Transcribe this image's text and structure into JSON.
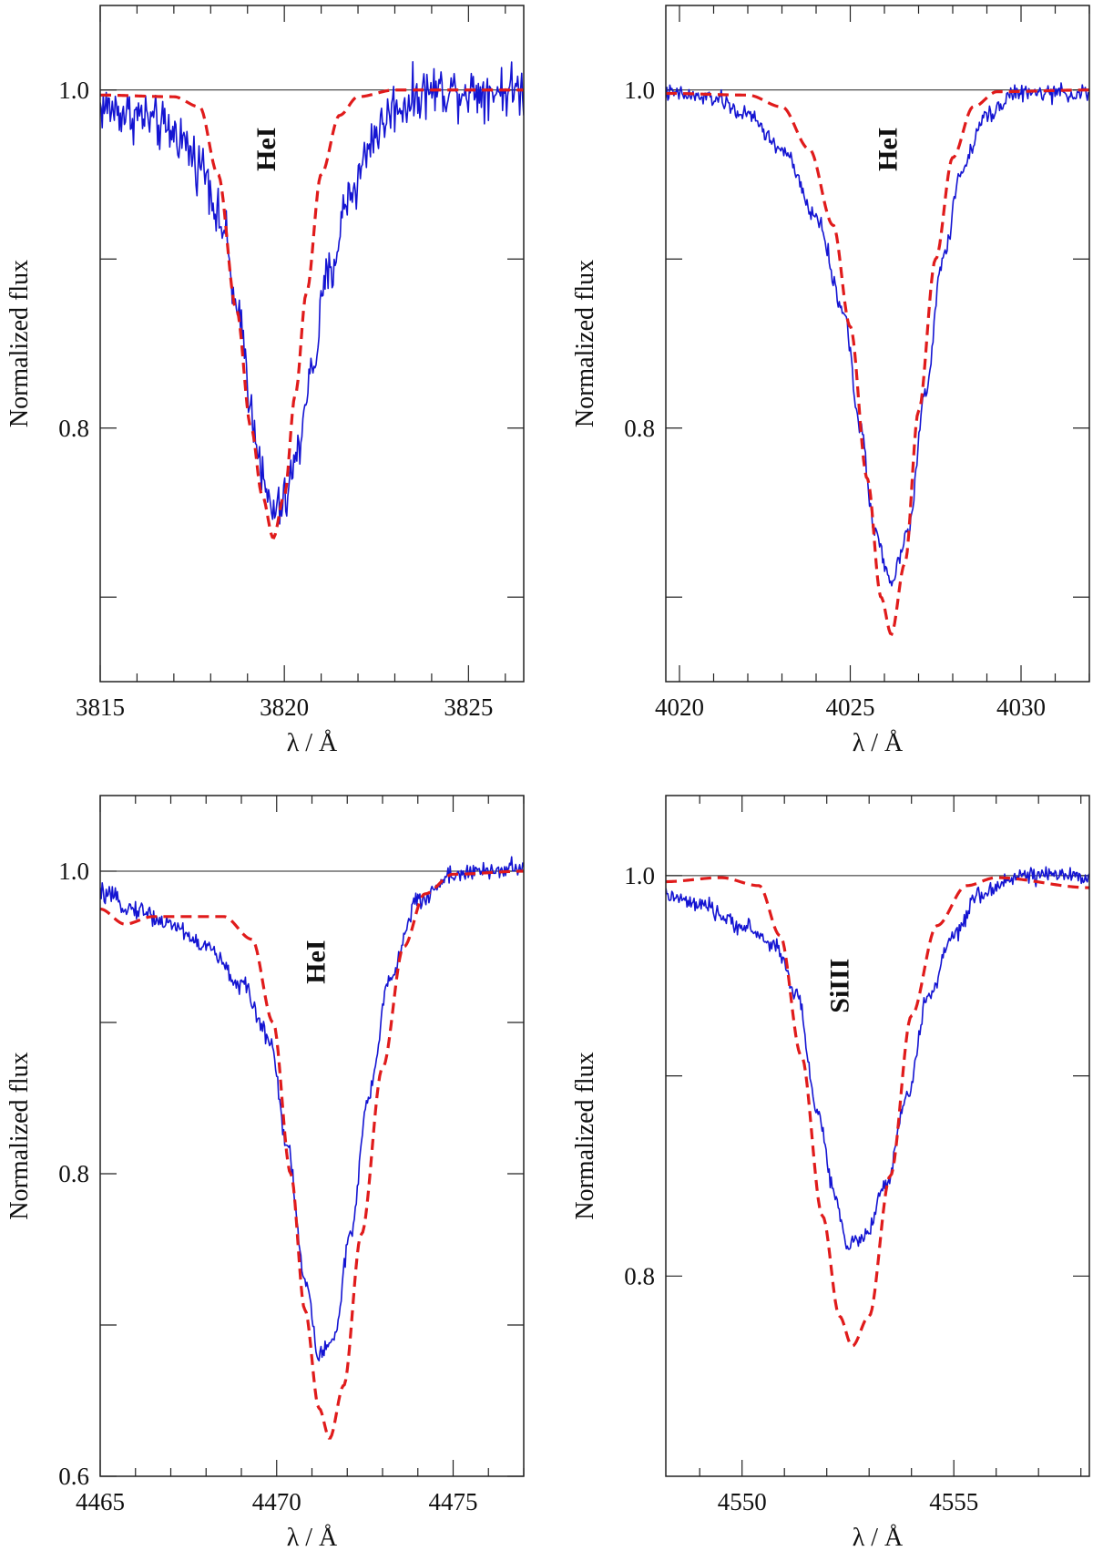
{
  "colors": {
    "observed": "#1414d2",
    "model": "#e01b1b",
    "axis": "#222222"
  },
  "chart_data": [
    {
      "type": "line",
      "panel": "top-left",
      "xlabel": "λ / Å",
      "ylabel": "Normalized flux",
      "annotation": "HeI",
      "xlim": [
        3815,
        3826.5
      ],
      "ylim": [
        0.65,
        1.05
      ],
      "xticks_major": [
        3815,
        3820,
        3825
      ],
      "xticks_minor_step": 1,
      "yticks_labeled": [
        {
          "value": 1.0,
          "label": "1.0"
        },
        {
          "value": 0.8,
          "label": "0.8"
        }
      ],
      "yticks_all": [
        0.7,
        0.8,
        0.9,
        1.0
      ],
      "reference_line": 1.0,
      "series": [
        {
          "name": "observed",
          "style": "solid",
          "noise": 0.0075,
          "x": [
            3815,
            3816,
            3817,
            3817.8,
            3818.3,
            3818.8,
            3819.2,
            3819.5,
            3819.7,
            3820,
            3820.3,
            3820.7,
            3821.2,
            3821.8,
            3822.5,
            3823,
            3824,
            3826.5
          ],
          "y": [
            0.99,
            0.985,
            0.975,
            0.955,
            0.92,
            0.86,
            0.8,
            0.76,
            0.75,
            0.755,
            0.78,
            0.83,
            0.89,
            0.94,
            0.975,
            0.99,
            1.0,
            1.0
          ]
        },
        {
          "name": "model",
          "style": "dashed",
          "x": [
            3815,
            3817,
            3817.7,
            3818.2,
            3818.7,
            3819.1,
            3819.4,
            3819.7,
            3820,
            3820.3,
            3820.6,
            3821,
            3821.5,
            3822,
            3823,
            3826.5
          ],
          "y": [
            0.997,
            0.996,
            0.99,
            0.95,
            0.87,
            0.8,
            0.76,
            0.735,
            0.76,
            0.82,
            0.88,
            0.95,
            0.985,
            0.996,
            1.0,
            1.0
          ]
        }
      ]
    },
    {
      "type": "line",
      "panel": "top-right",
      "xlabel": "λ / Å",
      "ylabel": "Normalized flux",
      "annotation": "HeI",
      "xlim": [
        4019.6,
        4032
      ],
      "ylim": [
        0.65,
        1.05
      ],
      "xticks_major": [
        4020,
        4025,
        4030
      ],
      "xticks_minor_step": 1,
      "yticks_labeled": [
        {
          "value": 1.0,
          "label": "1.0"
        },
        {
          "value": 0.8,
          "label": "0.8"
        }
      ],
      "yticks_all": [
        0.7,
        0.8,
        0.9,
        1.0
      ],
      "reference_line": 1.0,
      "series": [
        {
          "name": "observed",
          "style": "solid",
          "noise": 0.0025,
          "x": [
            4019.6,
            4021,
            4022,
            4023,
            4024,
            4024.8,
            4025.3,
            4025.7,
            4026.2,
            4026.7,
            4027.2,
            4027.7,
            4028.3,
            4029,
            4029.8,
            4032
          ],
          "y": [
            0.998,
            0.995,
            0.985,
            0.965,
            0.925,
            0.87,
            0.8,
            0.74,
            0.71,
            0.74,
            0.82,
            0.9,
            0.955,
            0.985,
            0.998,
            0.998
          ]
        },
        {
          "name": "model",
          "style": "dashed",
          "x": [
            4019.6,
            4022,
            4023,
            4023.8,
            4024.5,
            4025,
            4025.5,
            4025.9,
            4026.2,
            4026.6,
            4027,
            4027.5,
            4028,
            4028.6,
            4029.3,
            4032
          ],
          "y": [
            0.998,
            0.997,
            0.99,
            0.965,
            0.92,
            0.86,
            0.77,
            0.7,
            0.678,
            0.72,
            0.81,
            0.9,
            0.96,
            0.99,
            0.999,
            1.0
          ]
        }
      ]
    },
    {
      "type": "line",
      "panel": "bottom-left",
      "xlabel": "λ / Å",
      "ylabel": "Normalized flux",
      "annotation": "HeI",
      "xlim": [
        4465,
        4477
      ],
      "ylim": [
        0.6,
        1.05
      ],
      "xticks_major": [
        4465,
        4470,
        4475
      ],
      "xticks_minor_step": 1,
      "yticks_labeled": [
        {
          "value": 1.0,
          "label": "1.0"
        },
        {
          "value": 0.8,
          "label": "0.8"
        },
        {
          "value": 0.6,
          "label": "0.6"
        }
      ],
      "yticks_all": [
        0.6,
        0.7,
        0.8,
        0.9,
        1.0
      ],
      "reference_line": 1.0,
      "series": [
        {
          "name": "observed",
          "style": "solid",
          "noise": 0.003,
          "x": [
            4465,
            4466,
            4467,
            4468,
            4469,
            4469.8,
            4470.3,
            4470.8,
            4471.2,
            4471.6,
            4472.1,
            4472.6,
            4473.2,
            4474,
            4475,
            4477
          ],
          "y": [
            0.985,
            0.975,
            0.965,
            0.95,
            0.925,
            0.89,
            0.82,
            0.73,
            0.68,
            0.69,
            0.76,
            0.85,
            0.93,
            0.98,
            0.998,
            1.002
          ]
        },
        {
          "name": "model",
          "style": "dashed",
          "x": [
            4465,
            4465.7,
            4466.5,
            4467.5,
            4468.5,
            4469.3,
            4469.9,
            4470.4,
            4470.8,
            4471.2,
            4471.5,
            4471.9,
            4472.4,
            4473,
            4473.6,
            4474.2,
            4475,
            4477
          ],
          "y": [
            0.975,
            0.965,
            0.97,
            0.97,
            0.97,
            0.955,
            0.9,
            0.8,
            0.71,
            0.645,
            0.625,
            0.66,
            0.76,
            0.87,
            0.95,
            0.985,
            0.998,
            1.0
          ]
        }
      ]
    },
    {
      "type": "line",
      "panel": "bottom-right",
      "xlabel": "λ / Å",
      "ylabel": "Normalized flux",
      "annotation": "SiIII",
      "xlim": [
        4548.2,
        4558.2
      ],
      "ylim": [
        0.7,
        1.04
      ],
      "xticks_major": [
        4550,
        4555
      ],
      "xticks_minor_step": 1,
      "yticks_labeled": [
        {
          "value": 1.0,
          "label": "1.0"
        },
        {
          "value": 0.8,
          "label": "0.8"
        }
      ],
      "yticks_all": [
        0.8,
        0.9,
        1.0
      ],
      "reference_line": 1.0,
      "series": [
        {
          "name": "observed",
          "style": "solid",
          "noise": 0.002,
          "x": [
            4548.2,
            4549,
            4550,
            4550.8,
            4551.3,
            4551.8,
            4552.2,
            4552.5,
            4552.9,
            4553.4,
            4553.9,
            4554.4,
            4555,
            4555.6,
            4556.5,
            4558.2
          ],
          "y": [
            0.99,
            0.985,
            0.975,
            0.965,
            0.94,
            0.88,
            0.84,
            0.815,
            0.82,
            0.845,
            0.89,
            0.94,
            0.97,
            0.99,
            1.0,
            1.0
          ]
        },
        {
          "name": "model",
          "style": "dashed",
          "x": [
            4548.2,
            4549.5,
            4550.4,
            4550.9,
            4551.4,
            4551.9,
            4552.3,
            4552.6,
            4553,
            4553.5,
            4554,
            4554.6,
            4555.3,
            4556,
            4558.2
          ],
          "y": [
            0.997,
            0.999,
            0.995,
            0.97,
            0.91,
            0.83,
            0.78,
            0.765,
            0.78,
            0.85,
            0.93,
            0.975,
            0.995,
            0.999,
            0.994
          ]
        }
      ]
    }
  ]
}
